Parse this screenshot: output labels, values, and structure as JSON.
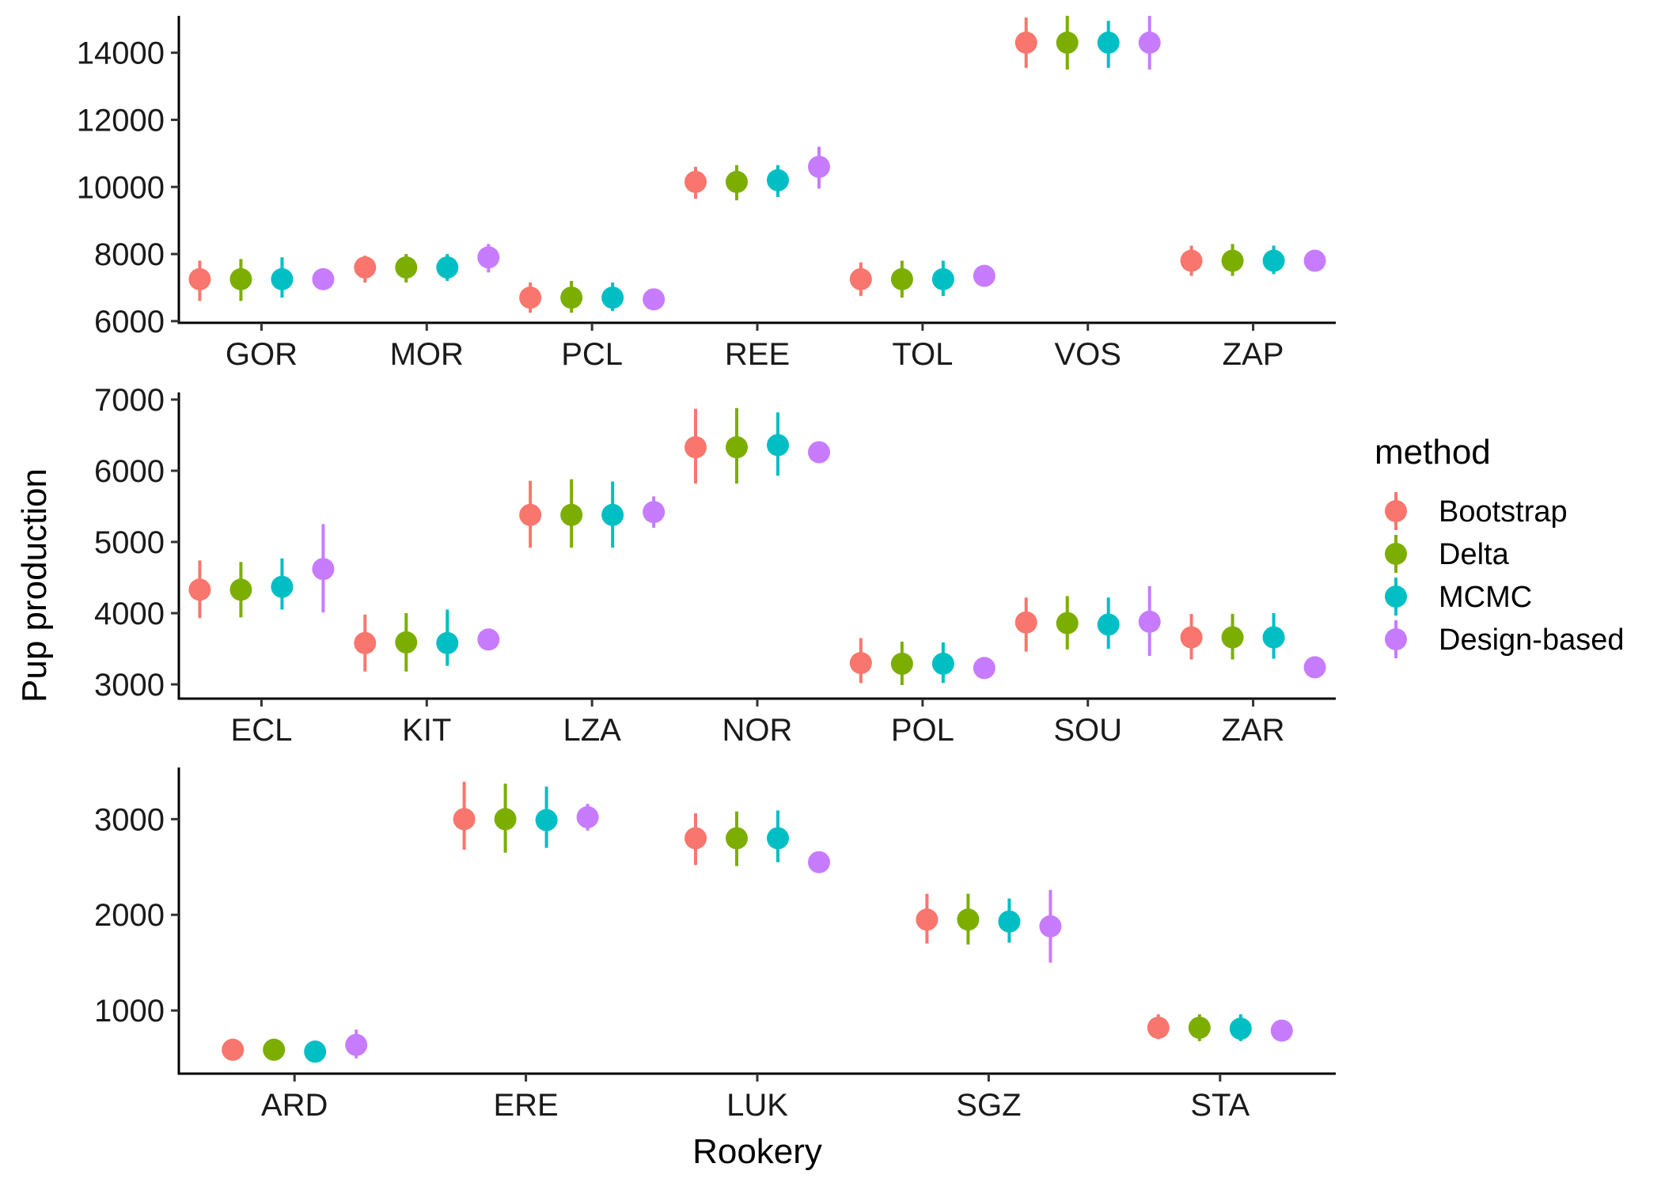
{
  "chart_data": {
    "type": "scatter",
    "xlabel": "Rookery",
    "ylabel": "Pup production",
    "legend": {
      "title": "method",
      "placement": "right",
      "items": [
        {
          "name": "Bootstrap",
          "color": "#F8766D"
        },
        {
          "name": "Delta",
          "color": "#7CAE00"
        },
        {
          "name": "MCMC",
          "color": "#00BFC4"
        },
        {
          "name": "Design-based",
          "color": "#C77CFF"
        }
      ]
    },
    "panels": [
      {
        "categories": [
          "GOR",
          "MOR",
          "PCL",
          "REE",
          "TOL",
          "VOS",
          "ZAP"
        ],
        "ylim": [
          5950,
          15100
        ],
        "yticks": [
          "6000",
          "8000",
          "10000",
          "12000",
          "14000"
        ],
        "series": [
          {
            "name": "Bootstrap",
            "values": [
              7250,
              7600,
              6700,
              10150,
              7250,
              14300,
              7800
            ],
            "lower": [
              6600,
              7150,
              6250,
              9650,
              6750,
              13550,
              7350
            ],
            "upper": [
              7800,
              7950,
              7150,
              10600,
              7750,
              15050,
              8250
            ]
          },
          {
            "name": "Delta",
            "values": [
              7250,
              7600,
              6700,
              10150,
              7250,
              14300,
              7800
            ],
            "lower": [
              6600,
              7150,
              6250,
              9600,
              6700,
              13500,
              7350
            ],
            "upper": [
              7850,
              8000,
              7200,
              10650,
              7800,
              15100,
              8300
            ]
          },
          {
            "name": "MCMC",
            "values": [
              7250,
              7600,
              6700,
              10200,
              7250,
              14300,
              7800
            ],
            "lower": [
              6700,
              7200,
              6300,
              9700,
              6750,
              13550,
              7400
            ],
            "upper": [
              7900,
              8000,
              7150,
              10650,
              7800,
              14950,
              8250
            ]
          },
          {
            "name": "Design-based",
            "values": [
              7250,
              7900,
              6650,
              10600,
              7350,
              14300,
              7800
            ],
            "lower": [
              7150,
              7450,
              6500,
              9950,
              7150,
              13500,
              7600
            ],
            "upper": [
              7400,
              8300,
              6850,
              11200,
              7600,
              15100,
              8000
            ]
          }
        ]
      },
      {
        "categories": [
          "ECL",
          "KIT",
          "LZA",
          "NOR",
          "POL",
          "SOU",
          "ZAR"
        ],
        "ylim": [
          2800,
          7100
        ],
        "yticks": [
          "3000",
          "4000",
          "5000",
          "6000",
          "7000"
        ],
        "series": [
          {
            "name": "Bootstrap",
            "values": [
              4330,
              3580,
              5380,
              6330,
              3300,
              3870,
              3660
            ],
            "lower": [
              3930,
              3180,
              4920,
              5820,
              3020,
              3460,
              3350
            ],
            "upper": [
              4740,
              3980,
              5860,
              6870,
              3650,
              4220,
              3990
            ]
          },
          {
            "name": "Delta",
            "values": [
              4330,
              3590,
              5380,
              6330,
              3290,
              3860,
              3660
            ],
            "lower": [
              3940,
              3180,
              4920,
              5820,
              2990,
              3490,
              3350
            ],
            "upper": [
              4720,
              4000,
              5880,
              6880,
              3600,
              4240,
              3990
            ]
          },
          {
            "name": "MCMC",
            "values": [
              4370,
              3580,
              5380,
              6360,
              3290,
              3840,
              3660
            ],
            "lower": [
              4050,
              3260,
              4920,
              5930,
              3020,
              3500,
              3360
            ],
            "upper": [
              4770,
              4050,
              5850,
              6820,
              3590,
              4220,
              4000
            ]
          },
          {
            "name": "Design-based",
            "values": [
              4620,
              3630,
              5420,
              6260,
              3230,
              3880,
              3240
            ],
            "lower": [
              4010,
              3560,
              5200,
              6200,
              3160,
              3400,
              3180
            ],
            "upper": [
              5250,
              3700,
              5640,
              6330,
              3300,
              4380,
              3300
            ]
          }
        ]
      },
      {
        "categories": [
          "ARD",
          "ERE",
          "LUK",
          "SGZ",
          "STA"
        ],
        "ylim": [
          340,
          3540
        ],
        "yticks": [
          "1000",
          "2000",
          "3000"
        ],
        "series": [
          {
            "name": "Bootstrap",
            "values": [
              590,
              3000,
              2800,
              1950,
              820
            ],
            "lower": [
              540,
              2680,
              2520,
              1700,
              700
            ],
            "upper": [
              640,
              3390,
              3060,
              2220,
              960
            ]
          },
          {
            "name": "Delta",
            "values": [
              590,
              3000,
              2800,
              1950,
              820
            ],
            "lower": [
              540,
              2650,
              2510,
              1690,
              680
            ],
            "upper": [
              640,
              3370,
              3080,
              2220,
              960
            ]
          },
          {
            "name": "MCMC",
            "values": [
              570,
              2990,
              2800,
              1930,
              810
            ],
            "lower": [
              520,
              2700,
              2550,
              1710,
              680
            ],
            "upper": [
              620,
              3340,
              3090,
              2170,
              960
            ]
          },
          {
            "name": "Design-based",
            "values": [
              640,
              3020,
              2550,
              1880,
              790
            ],
            "lower": [
              500,
              2880,
              2490,
              1500,
              740
            ],
            "upper": [
              800,
              3160,
              2610,
              2260,
              840
            ]
          }
        ]
      }
    ]
  }
}
